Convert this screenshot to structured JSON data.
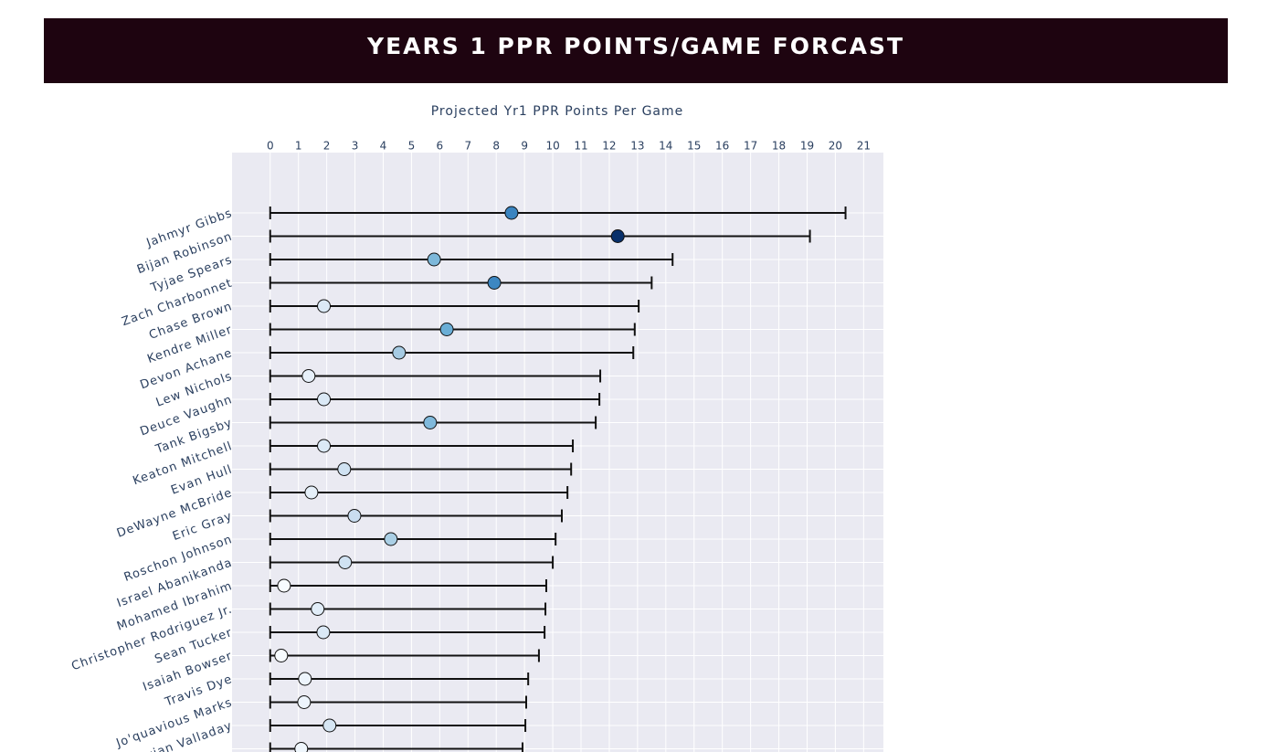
{
  "chart_data": {
    "type": "range-dot",
    "title": "YEARS 1 PPR POINTS/GAME FORCAST",
    "x_title": "Projected Yr1 PPR Points Per Game",
    "categories": [
      "Jahmyr Gibbs",
      "Bijan Robinson",
      "Tyjae Spears",
      "Zach Charbonnet",
      "Chase Brown",
      "Kendre Miller",
      "Devon Achane",
      "Lew Nichols",
      "Deuce Vaughn",
      "Tank Bigsby",
      "Keaton Mitchell",
      "Evan Hull",
      "DeWayne McBride",
      "Eric Gray",
      "Roschon Johnson",
      "Israel Abanikanda",
      "Mohamed Ibrahim",
      "Christopher Rodriguez Jr.",
      "Sean Tucker",
      "Isaiah Bowser",
      "Travis Dye",
      "Jo'quavious Marks",
      "Xazavian Valladay",
      null
    ],
    "values": [
      8.54,
      12.3,
      5.8,
      7.93,
      1.9,
      6.25,
      4.56,
      1.36,
      1.9,
      5.66,
      1.9,
      2.62,
      1.46,
      2.98,
      4.27,
      2.65,
      0.49,
      1.68,
      1.88,
      0.39,
      1.23,
      1.2,
      2.1,
      1.1
    ],
    "low": [
      0,
      0,
      0,
      0,
      0,
      0,
      0,
      0,
      0,
      0,
      0,
      0,
      0,
      0,
      0,
      0,
      0,
      0,
      0,
      0,
      0,
      0,
      0,
      0
    ],
    "high": [
      20.36,
      19.1,
      14.24,
      13.5,
      13.04,
      12.9,
      12.85,
      11.68,
      11.65,
      11.52,
      10.71,
      10.65,
      10.52,
      10.32,
      10.1,
      10.0,
      9.77,
      9.74,
      9.71,
      9.51,
      9.13,
      9.06,
      9.03,
      8.93
    ],
    "colors": [
      "#3a84c0",
      "#08306b",
      "#7db8da",
      "#3d87c2",
      "#dbe9f6",
      "#6aaed6",
      "#a6cbe3",
      "#e7f0fa",
      "#dbe9f6",
      "#80b9db",
      "#dbe9f6",
      "#d0e2f2",
      "#e5eff9",
      "#c9ddf0",
      "#aacfe5",
      "#d0e2f2",
      "#f7fbff",
      "#e1edf8",
      "#dbe9f6",
      "#f7fbff",
      "#edf4fc",
      "#edf4fc",
      "#d6e6f4",
      "#eff6fc"
    ],
    "xlim": [
      -1.35,
      21.7
    ],
    "xticks": [
      0,
      1,
      2,
      3,
      4,
      5,
      6,
      7,
      8,
      9,
      10,
      11,
      12,
      13,
      14,
      15,
      16,
      17,
      18,
      19,
      20,
      21
    ],
    "grid": true
  }
}
